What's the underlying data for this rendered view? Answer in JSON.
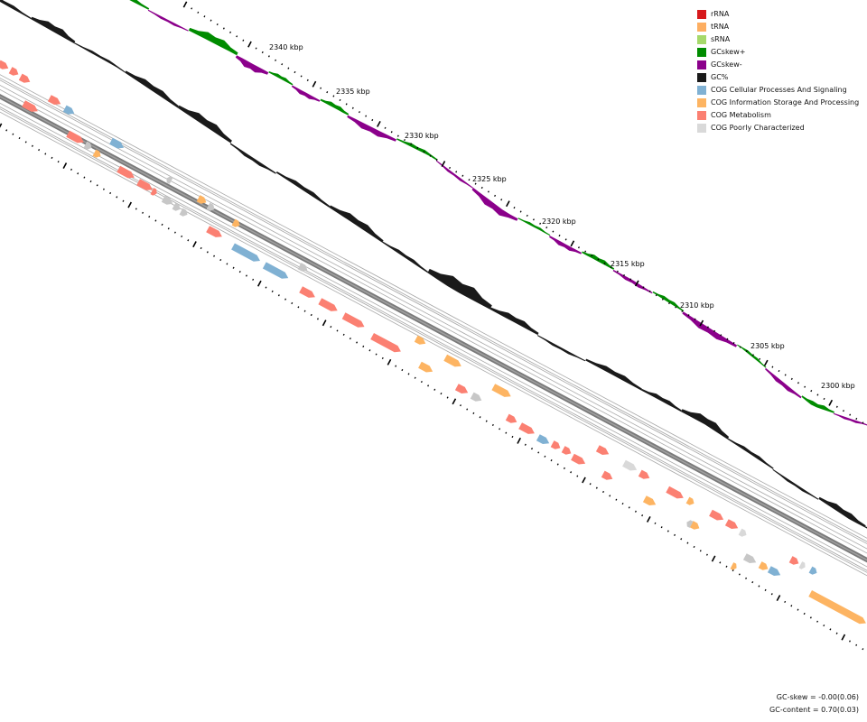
{
  "chart_data": {
    "type": "circular-genome-map-detail",
    "position_labels": [
      "2340 kbp",
      "2335 kbp",
      "2330 kbp",
      "2325 kbp",
      "2320 kbp",
      "2315 kbp",
      "2310 kbp",
      "2305 kbp",
      "2300 kbp"
    ],
    "legend": [
      {
        "label": "rRNA",
        "color": "#d7191c"
      },
      {
        "label": "tRNA",
        "color": "#fdae61"
      },
      {
        "label": "sRNA",
        "color": "#a6d96a"
      },
      {
        "label": "GCskew+",
        "color": "#008c00"
      },
      {
        "label": "GCskew-",
        "color": "#8b008b"
      },
      {
        "label": "GC%",
        "color": "#1a1a1a"
      },
      {
        "label": "COG Cellular Processes And Signaling",
        "color": "#80b1d3"
      },
      {
        "label": "COG Information Storage And Processing",
        "color": "#fdb462"
      },
      {
        "label": "COG Metabolism",
        "color": "#fb8072"
      },
      {
        "label": "COG Poorly Characterized",
        "color": "#d9d9d9"
      }
    ],
    "gc_skew_label": "GC-skew = -0.00(0.06)",
    "gc_content_label": "GC-content = 0.70(0.03)"
  }
}
